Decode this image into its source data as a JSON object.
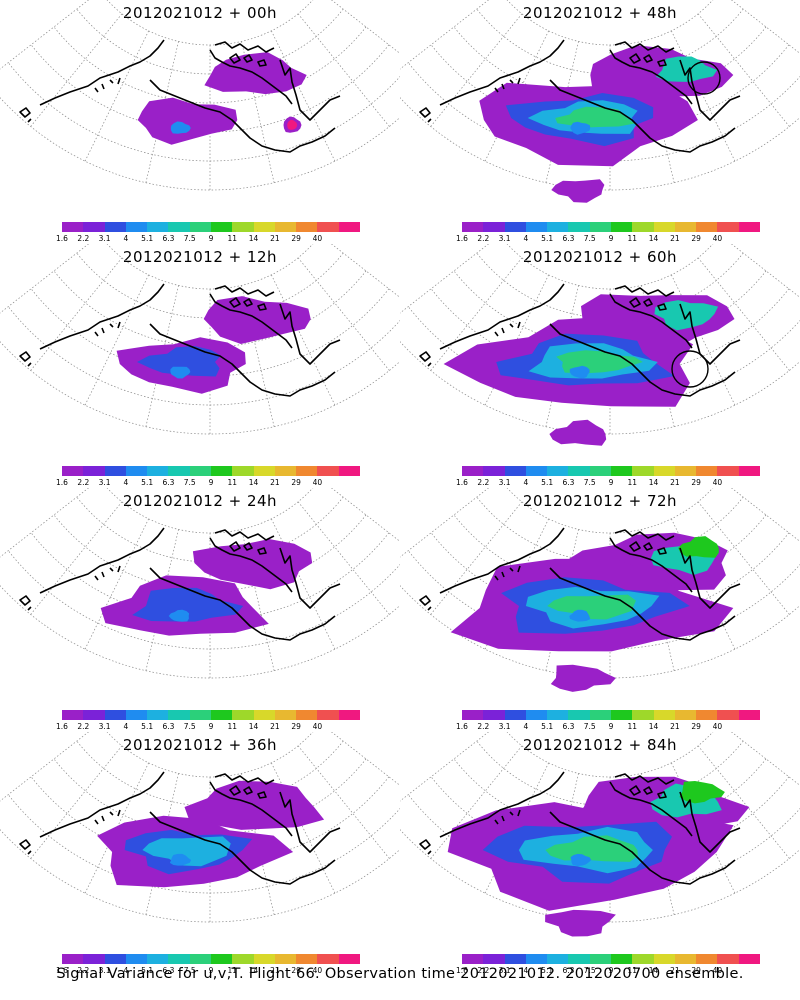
{
  "panels": [
    {
      "title": "2012021012 + 00h",
      "lead_hours": 0,
      "spread": 0.18,
      "intensity": 0.12,
      "extras": [
        "pink-spot"
      ]
    },
    {
      "title": "2012021012 + 48h",
      "lead_hours": 48,
      "spread": 0.7,
      "intensity": 0.45,
      "extras": [
        "circle-ne",
        "pacific-blob"
      ]
    },
    {
      "title": "2012021012 + 12h",
      "lead_hours": 12,
      "spread": 0.3,
      "intensity": 0.18,
      "extras": []
    },
    {
      "title": "2012021012 + 60h",
      "lead_hours": 60,
      "spread": 0.8,
      "intensity": 0.55,
      "extras": [
        "circle-se",
        "pacific-blob"
      ]
    },
    {
      "title": "2012021012 + 24h",
      "lead_hours": 24,
      "spread": 0.42,
      "intensity": 0.25,
      "extras": []
    },
    {
      "title": "2012021012 + 72h",
      "lead_hours": 72,
      "spread": 0.88,
      "intensity": 0.62,
      "extras": [
        "pacific-blob"
      ]
    },
    {
      "title": "2012021012 + 36h",
      "lead_hours": 36,
      "spread": 0.55,
      "intensity": 0.38,
      "extras": []
    },
    {
      "title": "2012021012 + 84h",
      "lead_hours": 84,
      "spread": 0.95,
      "intensity": 0.68,
      "extras": [
        "pacific-blob"
      ]
    }
  ],
  "colorbar": {
    "labels": [
      "1.6",
      "2.2",
      "3.1",
      "4",
      "5.1",
      "6.3",
      "7.5",
      "9",
      "11",
      "14",
      "21",
      "29",
      "40"
    ],
    "colors": [
      "#9a20c8",
      "#7b22d8",
      "#2f4fe0",
      "#1f8cf0",
      "#1db0e0",
      "#18c8b0",
      "#2bd07a",
      "#1ec81e",
      "#9ed82a",
      "#d8d82a",
      "#e8b830",
      "#f08830",
      "#f05050",
      "#f01880"
    ]
  },
  "caption": "Signal Variance for u,v,T. Flight 66. Observation time 2012021012. 2012020700 ensemble."
}
